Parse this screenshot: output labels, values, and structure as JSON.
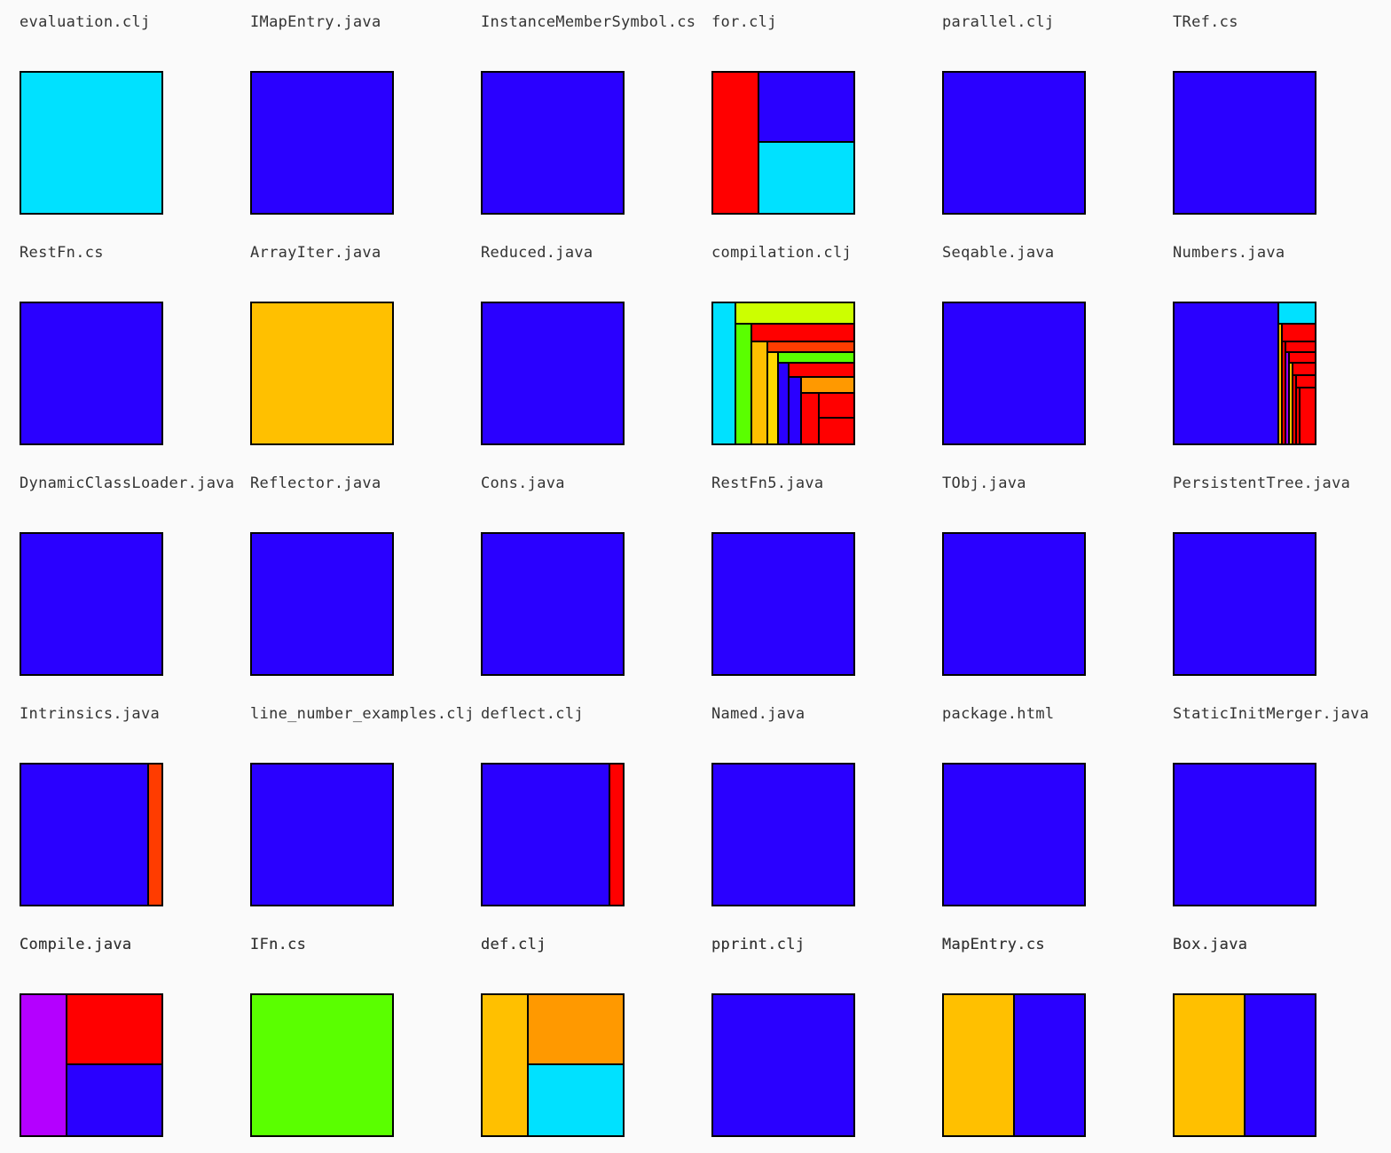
{
  "colors": {
    "blue": "#2a00ff",
    "cyan": "#00e1ff",
    "red": "#ff0000",
    "orange_red": "#ff3c00",
    "orange": "#ff9900",
    "amber": "#ffc000",
    "green": "#5aff00",
    "lime": "#ccff00",
    "purple": "#b400ff",
    "yellow": "#ffd800",
    "violet": "#9f00ff"
  },
  "files": [
    {
      "name": "evaluation.clj",
      "chart_data": {
        "type": "treemap",
        "segments": [
          {
            "color": "#00e1ff",
            "share": 1.0
          }
        ]
      }
    },
    {
      "name": "IMapEntry.java",
      "chart_data": {
        "type": "treemap",
        "segments": [
          {
            "color": "#2a00ff",
            "share": 1.0
          }
        ]
      }
    },
    {
      "name": "InstanceMemberSymbol.cs",
      "chart_data": {
        "type": "treemap",
        "segments": [
          {
            "color": "#2a00ff",
            "share": 1.0
          }
        ]
      }
    },
    {
      "name": "for.clj",
      "chart_data": {
        "type": "treemap",
        "segments": [
          {
            "color": "#ff0000",
            "share": 0.33
          },
          {
            "color": "#2a00ff",
            "share": 0.335
          },
          {
            "color": "#00e1ff",
            "share": 0.335
          }
        ]
      }
    },
    {
      "name": "parallel.clj",
      "chart_data": {
        "type": "treemap",
        "segments": [
          {
            "color": "#2a00ff",
            "share": 1.0
          }
        ]
      }
    },
    {
      "name": "TRef.cs",
      "chart_data": {
        "type": "treemap",
        "segments": [
          {
            "color": "#2a00ff",
            "share": 1.0
          }
        ]
      }
    },
    {
      "name": "RestFn.cs",
      "chart_data": {
        "type": "treemap",
        "segments": [
          {
            "color": "#2a00ff",
            "share": 1.0
          }
        ]
      }
    },
    {
      "name": "ArrayIter.java",
      "chart_data": {
        "type": "treemap",
        "segments": [
          {
            "color": "#ffc000",
            "share": 1.0
          }
        ]
      }
    },
    {
      "name": "Reduced.java",
      "chart_data": {
        "type": "treemap",
        "segments": [
          {
            "color": "#2a00ff",
            "share": 1.0
          }
        ]
      }
    },
    {
      "name": "compilation.clj",
      "chart_data": {
        "type": "treemap",
        "segments": [
          {
            "color": "#00e1ff"
          },
          {
            "color": "#ccff00"
          },
          {
            "color": "#5aff00"
          },
          {
            "color": "#ff0000"
          },
          {
            "color": "#ffc000"
          },
          {
            "color": "#ff3c00"
          },
          {
            "color": "#ffd800"
          },
          {
            "color": "#5aff00"
          },
          {
            "color": "#2a00ff"
          },
          {
            "color": "#ff0000"
          },
          {
            "color": "#2a00ff"
          },
          {
            "color": "#ff9900"
          },
          {
            "color": "#ff0000"
          },
          {
            "color": "#ff0000"
          },
          {
            "color": "#ff0000"
          }
        ]
      }
    },
    {
      "name": "Seqable.java",
      "chart_data": {
        "type": "treemap",
        "segments": [
          {
            "color": "#2a00ff",
            "share": 1.0
          }
        ]
      }
    },
    {
      "name": "Numbers.java",
      "chart_data": {
        "type": "treemap",
        "segments": [
          {
            "color": "#2a00ff"
          },
          {
            "color": "#00e1ff"
          },
          {
            "color": "#ffc000"
          },
          {
            "color": "#ff0000"
          },
          {
            "color": "#ff0000"
          },
          {
            "color": "#ff0000"
          },
          {
            "color": "#9f00ff"
          },
          {
            "color": "#ff0000"
          },
          {
            "color": "#ffc000"
          },
          {
            "color": "#ff0000"
          },
          {
            "color": "#ff0000"
          },
          {
            "color": "#ff0000"
          },
          {
            "color": "#ff0000"
          },
          {
            "color": "#ff0000"
          }
        ]
      }
    },
    {
      "name": "DynamicClassLoader.java",
      "chart_data": {
        "type": "treemap",
        "segments": [
          {
            "color": "#2a00ff",
            "share": 1.0
          }
        ]
      }
    },
    {
      "name": "Reflector.java",
      "chart_data": {
        "type": "treemap",
        "segments": [
          {
            "color": "#2a00ff",
            "share": 1.0
          }
        ]
      }
    },
    {
      "name": "Cons.java",
      "chart_data": {
        "type": "treemap",
        "segments": [
          {
            "color": "#2a00ff",
            "share": 1.0
          }
        ]
      }
    },
    {
      "name": "RestFn5.java",
      "chart_data": {
        "type": "treemap",
        "segments": [
          {
            "color": "#2a00ff",
            "share": 1.0
          }
        ]
      }
    },
    {
      "name": "TObj.java",
      "chart_data": {
        "type": "treemap",
        "segments": [
          {
            "color": "#2a00ff",
            "share": 1.0
          }
        ]
      }
    },
    {
      "name": "PersistentTree.java",
      "chart_data": {
        "type": "treemap",
        "segments": [
          {
            "color": "#2a00ff",
            "share": 1.0
          }
        ]
      }
    },
    {
      "name": "Intrinsics.java",
      "chart_data": {
        "type": "treemap",
        "segments": [
          {
            "color": "#2a00ff",
            "share": 0.9
          },
          {
            "color": "#ff3c00",
            "share": 0.1
          }
        ]
      }
    },
    {
      "name": "line_number_examples.clj",
      "chart_data": {
        "type": "treemap",
        "segments": [
          {
            "color": "#2a00ff",
            "share": 1.0
          }
        ]
      }
    },
    {
      "name": "deflect.clj",
      "chart_data": {
        "type": "treemap",
        "segments": [
          {
            "color": "#2a00ff",
            "share": 0.9
          },
          {
            "color": "#ff0000",
            "share": 0.1
          }
        ]
      }
    },
    {
      "name": "Named.java",
      "chart_data": {
        "type": "treemap",
        "segments": [
          {
            "color": "#2a00ff",
            "share": 1.0
          }
        ]
      }
    },
    {
      "name": "package.html",
      "chart_data": {
        "type": "treemap",
        "segments": [
          {
            "color": "#2a00ff",
            "share": 1.0
          }
        ]
      }
    },
    {
      "name": "StaticInitMerger.java",
      "chart_data": {
        "type": "treemap",
        "segments": [
          {
            "color": "#2a00ff",
            "share": 1.0
          }
        ]
      }
    },
    {
      "name": "Compile.java",
      "chart_data": {
        "type": "treemap",
        "segments": [
          {
            "color": "#b400ff",
            "share": 0.33
          },
          {
            "color": "#ff0000",
            "share": 0.335
          },
          {
            "color": "#2a00ff",
            "share": 0.335
          }
        ]
      }
    },
    {
      "name": "IFn.cs",
      "chart_data": {
        "type": "treemap",
        "segments": [
          {
            "color": "#5aff00",
            "share": 1.0
          }
        ]
      }
    },
    {
      "name": "def.clj",
      "chart_data": {
        "type": "treemap",
        "segments": [
          {
            "color": "#ffc000",
            "share": 0.33
          },
          {
            "color": "#ff9900",
            "share": 0.335
          },
          {
            "color": "#00e1ff",
            "share": 0.335
          }
        ]
      }
    },
    {
      "name": "pprint.clj",
      "chart_data": {
        "type": "treemap",
        "segments": [
          {
            "color": "#2a00ff",
            "share": 1.0
          }
        ]
      }
    },
    {
      "name": "MapEntry.cs",
      "chart_data": {
        "type": "treemap",
        "segments": [
          {
            "color": "#ffc000",
            "share": 0.5
          },
          {
            "color": "#2a00ff",
            "share": 0.5
          }
        ]
      }
    },
    {
      "name": "Box.java",
      "chart_data": {
        "type": "treemap",
        "segments": [
          {
            "color": "#ffc000",
            "share": 0.5
          },
          {
            "color": "#2a00ff",
            "share": 0.5
          }
        ]
      }
    }
  ],
  "footer_labels": [
    "Compile.java",
    "IFn.cs",
    "def.clj",
    "pprint.clj",
    "MapEntry.cs",
    "Box.java"
  ]
}
